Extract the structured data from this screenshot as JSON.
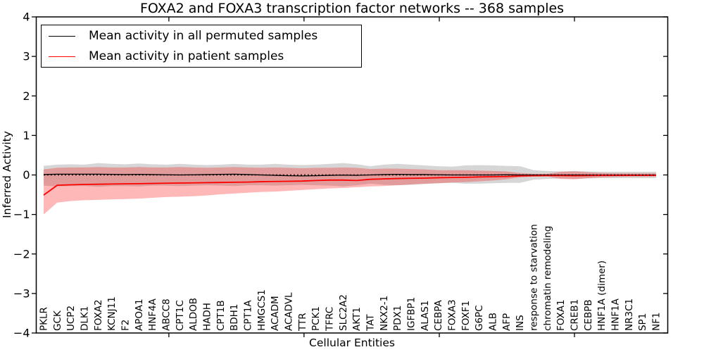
{
  "figure": {
    "background": "#ffffff"
  },
  "legend": {
    "position": "upper left",
    "items": [
      {
        "label": "Mean activity in all permuted samples",
        "color": "#000000"
      },
      {
        "label": "Mean activity in patient samples",
        "color": "#ff0000"
      }
    ]
  },
  "chart_data": {
    "type": "line",
    "title": "FOXA2 and FOXA3 transcription factor networks -- 368 samples",
    "xlabel": "Cellular Entities",
    "ylabel": "Inferred Activity",
    "ylim": [
      -4,
      4
    ],
    "grid": false,
    "legend_position": "upper left",
    "y_ticks": [
      {
        "value": 4,
        "label": "4"
      },
      {
        "value": 3,
        "label": "3"
      },
      {
        "value": 2,
        "label": "2"
      },
      {
        "value": 1,
        "label": "1"
      },
      {
        "value": 0,
        "label": "0"
      },
      {
        "value": -1,
        "label": "−1"
      },
      {
        "value": -2,
        "label": "−2"
      },
      {
        "value": -3,
        "label": "−3"
      },
      {
        "value": -4,
        "label": "−4"
      }
    ],
    "categories": [
      "PKLR",
      "GCK",
      "UCP2",
      "DLK1",
      "FOXA2",
      "KCNJ11",
      "F2",
      "APOA1",
      "HNF4A",
      "ABCC8",
      "CPT1C",
      "ALDOB",
      "HADH",
      "CPT1B",
      "BDH1",
      "CPT1A",
      "HMGCS1",
      "ACADM",
      "ACADVL",
      "TTR",
      "PCK1",
      "TFRC",
      "SLC2A2",
      "AKT1",
      "TAT",
      "NKX2-1",
      "PDX1",
      "IGFBP1",
      "ALAS1",
      "CEBPA",
      "FOXA3",
      "FOXF1",
      "G6PC",
      "ALB",
      "AFP",
      "INS",
      "response to starvation",
      "chromatin remodeling",
      "FOXA1",
      "CREB1",
      "CEBPB",
      "HNF1A (dimer)",
      "HNF1A",
      "NR3C1",
      "SP1",
      "NF1"
    ],
    "series": [
      {
        "name": "Mean activity in all permuted samples",
        "color": "#000000",
        "width": 1.3,
        "values": [
          0.01,
          0.02,
          0.02,
          0.02,
          0.02,
          0.015,
          0.01,
          0.015,
          0.01,
          0.005,
          0.0,
          0.005,
          0.01,
          0.015,
          0.02,
          0.01,
          0.0,
          -0.01,
          -0.02,
          -0.025,
          -0.02,
          -0.01,
          -0.005,
          -0.01,
          0.0,
          0.01,
          0.015,
          0.01,
          0.01,
          0.005,
          0.0,
          0.0,
          0.0,
          0.0,
          0.005,
          0.0,
          0.0,
          0.0,
          0.0,
          0.0,
          0.0,
          0.0,
          0.0,
          0.0,
          0.0,
          0.0
        ]
      },
      {
        "name": "Mean activity in patient samples",
        "color": "#ff0000",
        "width": 1.8,
        "values": [
          -0.51,
          -0.26,
          -0.25,
          -0.24,
          -0.235,
          -0.23,
          -0.225,
          -0.22,
          -0.215,
          -0.21,
          -0.205,
          -0.2,
          -0.195,
          -0.19,
          -0.185,
          -0.18,
          -0.17,
          -0.165,
          -0.16,
          -0.155,
          -0.14,
          -0.13,
          -0.13,
          -0.14,
          -0.11,
          -0.1,
          -0.09,
          -0.085,
          -0.08,
          -0.07,
          -0.065,
          -0.06,
          -0.05,
          -0.045,
          -0.04,
          -0.025,
          -0.02,
          -0.015,
          -0.015,
          -0.02,
          -0.015,
          -0.01,
          -0.01,
          -0.01,
          -0.01,
          -0.01
        ]
      }
    ],
    "bands": [
      {
        "name": "permuted samples range",
        "color": "rgba(120,120,120,0.30)",
        "upper": [
          0.23,
          0.26,
          0.27,
          0.26,
          0.3,
          0.28,
          0.27,
          0.29,
          0.27,
          0.26,
          0.28,
          0.26,
          0.25,
          0.26,
          0.28,
          0.26,
          0.26,
          0.28,
          0.26,
          0.25,
          0.26,
          0.28,
          0.3,
          0.27,
          0.22,
          0.26,
          0.28,
          0.26,
          0.24,
          0.22,
          0.21,
          0.24,
          0.25,
          0.24,
          0.23,
          0.22,
          0.12,
          0.1,
          0.09,
          0.1,
          0.09,
          0.08,
          0.08,
          0.08,
          0.08,
          0.08
        ],
        "lower": [
          -0.27,
          -0.29,
          -0.28,
          -0.28,
          -0.3,
          -0.28,
          -0.28,
          -0.29,
          -0.27,
          -0.27,
          -0.28,
          -0.27,
          -0.26,
          -0.27,
          -0.28,
          -0.26,
          -0.26,
          -0.27,
          -0.26,
          -0.25,
          -0.26,
          -0.27,
          -0.29,
          -0.26,
          -0.22,
          -0.25,
          -0.26,
          -0.25,
          -0.23,
          -0.21,
          -0.2,
          -0.22,
          -0.22,
          -0.21,
          -0.2,
          -0.2,
          -0.12,
          -0.1,
          -0.09,
          -0.1,
          -0.09,
          -0.08,
          -0.08,
          -0.08,
          -0.08,
          -0.08
        ]
      },
      {
        "name": "patient samples range",
        "color": "rgba(255,20,20,0.30)",
        "upper": [
          0.14,
          0.18,
          0.19,
          0.19,
          0.2,
          0.19,
          0.19,
          0.2,
          0.19,
          0.19,
          0.2,
          0.19,
          0.18,
          0.19,
          0.2,
          0.19,
          0.18,
          0.19,
          0.18,
          0.17,
          0.18,
          0.18,
          0.19,
          0.18,
          0.15,
          0.16,
          0.16,
          0.15,
          0.14,
          0.12,
          0.12,
          0.12,
          0.11,
          0.1,
          0.09,
          0.05,
          0.03,
          0.03,
          0.08,
          0.09,
          0.07,
          0.05,
          0.04,
          0.04,
          0.04,
          0.04
        ],
        "lower": [
          -1.0,
          -0.7,
          -0.66,
          -0.64,
          -0.63,
          -0.62,
          -0.61,
          -0.6,
          -0.58,
          -0.56,
          -0.55,
          -0.54,
          -0.52,
          -0.49,
          -0.47,
          -0.45,
          -0.43,
          -0.42,
          -0.4,
          -0.38,
          -0.36,
          -0.34,
          -0.33,
          -0.31,
          -0.29,
          -0.28,
          -0.26,
          -0.24,
          -0.22,
          -0.21,
          -0.19,
          -0.18,
          -0.16,
          -0.14,
          -0.11,
          -0.06,
          -0.04,
          -0.04,
          -0.1,
          -0.11,
          -0.08,
          -0.06,
          -0.05,
          -0.04,
          -0.04,
          -0.04
        ]
      }
    ],
    "zero_line": {
      "style": "dotted",
      "color": "#000000"
    }
  }
}
